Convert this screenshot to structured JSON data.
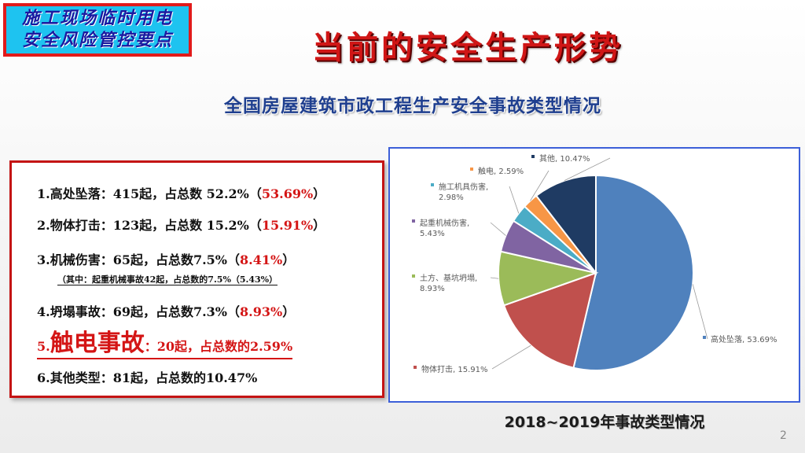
{
  "badge": {
    "line1": "施工现场临时用电",
    "line2": "安全风险管控要点"
  },
  "title": "当前的安全生产形势",
  "subtitle": "全国房屋建筑市政工程生产安全事故类型情况",
  "list": {
    "item1": {
      "text": "1.高处坠落：415起，占总数 52.2%（",
      "highlight": "53.69%",
      "close": "）"
    },
    "item2": {
      "text": "2.物体打击：123起，占总数 15.2%（",
      "highlight": "15.91%",
      "close": "）"
    },
    "item3": {
      "text": "3.机械伤害：65起，占总数7.5%（",
      "highlight": "8.41%",
      "close": "）"
    },
    "item3_note": "（其中：起重机械事故42起，占总数的7.5%（5.43%）",
    "item4": {
      "text": "4.坍塌事故：69起，占总数7.3%（",
      "highlight": "8.93%",
      "close": "）"
    },
    "item5": {
      "prefix": "5.",
      "big": "触电事故",
      "rest": "：20起，占总数的2.59%"
    },
    "item6": "6.其他类型：81起，占总数的10.47%"
  },
  "chart_data": {
    "type": "pie",
    "slices": [
      {
        "name": "高处坠落",
        "value": 53.69,
        "label": "高处坠落, 53.69%",
        "color": "#4f81bd"
      },
      {
        "name": "物体打击",
        "value": 15.91,
        "label": "物体打击, 15.91%",
        "color": "#c0504d"
      },
      {
        "name": "土方、基坑坍塌",
        "value": 8.93,
        "label": "土方、基坑坍塌, 8.93%",
        "color": "#9bbb59"
      },
      {
        "name": "起重机械伤害",
        "value": 5.43,
        "label": "起重机械伤害, 5.43%",
        "color": "#8064a2"
      },
      {
        "name": "施工机具伤害",
        "value": 2.98,
        "label": "施工机具伤害, 2.98%",
        "color": "#4bacc6"
      },
      {
        "name": "触电",
        "value": 2.59,
        "label": "触电, 2.59%",
        "color": "#f79646"
      },
      {
        "name": "其他",
        "value": 10.47,
        "label": "其他, 10.47%",
        "color": "#1f3b63"
      }
    ]
  },
  "caption": "2018~2019年事故类型情况",
  "page_number": "2"
}
